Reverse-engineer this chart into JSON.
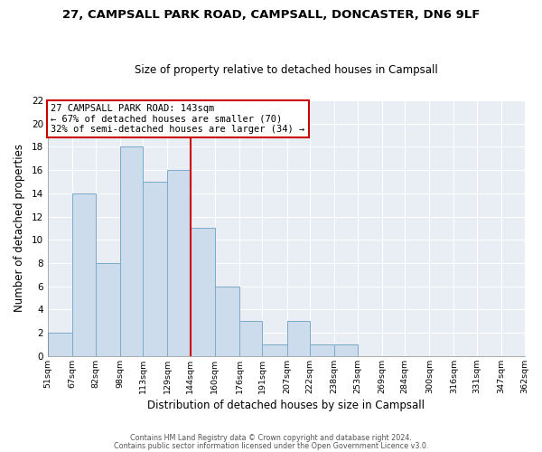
{
  "title": "27, CAMPSALL PARK ROAD, CAMPSALL, DONCASTER, DN6 9LF",
  "subtitle": "Size of property relative to detached houses in Campsall",
  "xlabel": "Distribution of detached houses by size in Campsall",
  "ylabel": "Number of detached properties",
  "bin_edges": [
    51,
    67,
    82,
    98,
    113,
    129,
    144,
    160,
    176,
    191,
    207,
    222,
    238,
    253,
    269,
    284,
    300,
    316,
    331,
    347,
    362
  ],
  "bar_heights": [
    2,
    14,
    8,
    18,
    15,
    16,
    11,
    6,
    3,
    1,
    3,
    1,
    1,
    0,
    0,
    0,
    0,
    0,
    0,
    0
  ],
  "bar_color": "#ccdcec",
  "bar_edgecolor": "#7aaacb",
  "reference_line_x": 144,
  "reference_line_color": "#cc0000",
  "annotation_text": "27 CAMPSALL PARK ROAD: 143sqm\n← 67% of detached houses are smaller (70)\n32% of semi-detached houses are larger (34) →",
  "annotation_box_edgecolor": "#cc0000",
  "annotation_box_facecolor": "#ffffff",
  "ylim": [
    0,
    22
  ],
  "yticks": [
    0,
    2,
    4,
    6,
    8,
    10,
    12,
    14,
    16,
    18,
    20,
    22
  ],
  "footer_line1": "Contains HM Land Registry data © Crown copyright and database right 2024.",
  "footer_line2": "Contains public sector information licensed under the Open Government Licence v3.0.",
  "background_color": "#ffffff",
  "plot_background_color": "#e8eef4",
  "grid_color": "#ffffff"
}
